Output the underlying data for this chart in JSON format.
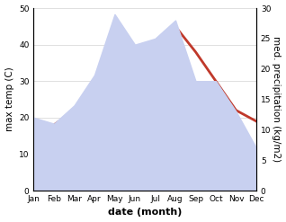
{
  "months": [
    "Jan",
    "Feb",
    "Mar",
    "Apr",
    "May",
    "Jun",
    "Jul",
    "Aug",
    "Sep",
    "Oct",
    "Nov",
    "Dec"
  ],
  "temperature": [
    17,
    18,
    22,
    27,
    36,
    37,
    41,
    45,
    38,
    30,
    22,
    19
  ],
  "precipitation": [
    12,
    11,
    14,
    19,
    29,
    24,
    25,
    28,
    18,
    18,
    13,
    7
  ],
  "temp_color": "#c0392b",
  "precip_fill_color": "#c8d0f0",
  "ylabel_left": "max temp (C)",
  "ylabel_right": "med. precipitation (kg/m2)",
  "xlabel": "date (month)",
  "ylim_left": [
    0,
    50
  ],
  "ylim_right": [
    0,
    30
  ],
  "bg_color": "#ffffff",
  "label_fontsize": 7.5,
  "tick_fontsize": 6.5,
  "xlabel_fontsize": 8,
  "linewidth": 2.0
}
